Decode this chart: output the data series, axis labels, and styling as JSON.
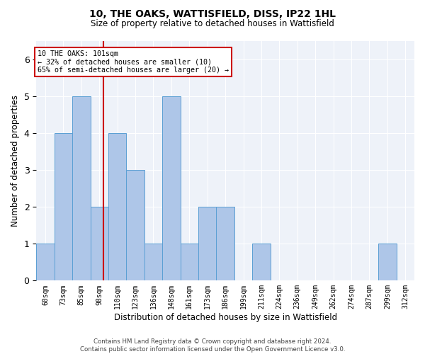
{
  "title1": "10, THE OAKS, WATTISFIELD, DISS, IP22 1HL",
  "title2": "Size of property relative to detached houses in Wattisfield",
  "xlabel": "Distribution of detached houses by size in Wattisfield",
  "ylabel": "Number of detached properties",
  "footnote": "Contains HM Land Registry data © Crown copyright and database right 2024.\nContains public sector information licensed under the Open Government Licence v3.0.",
  "bin_labels": [
    "60sqm",
    "73sqm",
    "85sqm",
    "98sqm",
    "110sqm",
    "123sqm",
    "136sqm",
    "148sqm",
    "161sqm",
    "173sqm",
    "186sqm",
    "199sqm",
    "211sqm",
    "224sqm",
    "236sqm",
    "249sqm",
    "262sqm",
    "274sqm",
    "287sqm",
    "299sqm",
    "312sqm"
  ],
  "bar_values": [
    1,
    4,
    5,
    2,
    4,
    3,
    1,
    5,
    1,
    2,
    2,
    0,
    1,
    0,
    0,
    0,
    0,
    0,
    0,
    1,
    0
  ],
  "bar_color": "#aec6e8",
  "bar_edge_color": "#5a9fd4",
  "red_line_x": 3,
  "annotation_title": "10 THE OAKS: 101sqm",
  "annotation_line1": "← 32% of detached houses are smaller (10)",
  "annotation_line2": "65% of semi-detached houses are larger (20) →",
  "red_line_color": "#cc0000",
  "annotation_box_color": "#ffffff",
  "annotation_box_edge": "#cc0000",
  "ylim": [
    0,
    6.5
  ],
  "yticks": [
    0,
    1,
    2,
    3,
    4,
    5,
    6
  ],
  "background_color": "#eef2f9"
}
